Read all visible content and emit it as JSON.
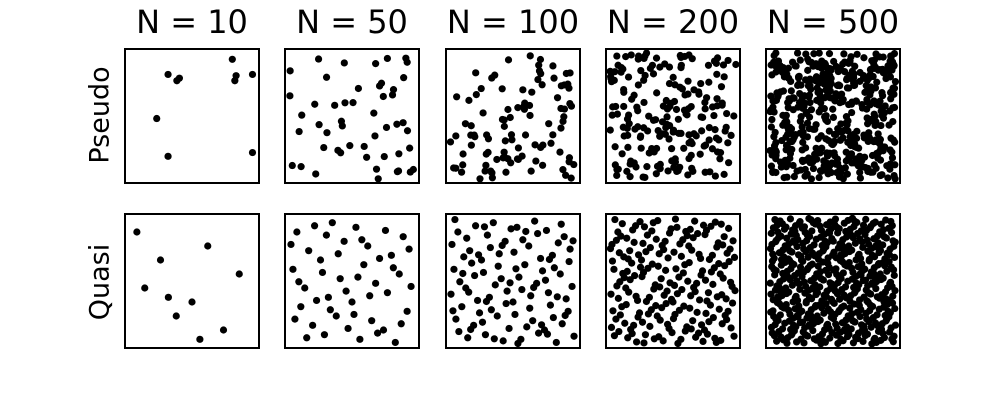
{
  "figure": {
    "col_titles": [
      "N = 10",
      "N = 50",
      "N = 100",
      "N = 200",
      "N = 500"
    ],
    "row_labels": [
      "Pseudo",
      "Quasi"
    ]
  },
  "chart_data": {
    "type": "scatter",
    "layout": "grid",
    "rows": [
      "Pseudo",
      "Quasi"
    ],
    "columns": [
      "N = 10",
      "N = 50",
      "N = 100",
      "N = 200",
      "N = 500"
    ],
    "sample_sizes": [
      10,
      50,
      100,
      200,
      500
    ],
    "xlim": [
      0,
      1
    ],
    "ylim": [
      0,
      1
    ],
    "axes_ticks": "none",
    "grid": false,
    "marker_color": "#000000",
    "pseudo_n10_points": [
      [
        0.31,
        0.83
      ],
      [
        0.38,
        0.78
      ],
      [
        0.4,
        0.8
      ],
      [
        0.82,
        0.95
      ],
      [
        0.84,
        0.78
      ],
      [
        0.85,
        0.82
      ],
      [
        0.98,
        0.83
      ],
      [
        0.22,
        0.48
      ],
      [
        0.31,
        0.18
      ],
      [
        0.98,
        0.21
      ]
    ]
  }
}
